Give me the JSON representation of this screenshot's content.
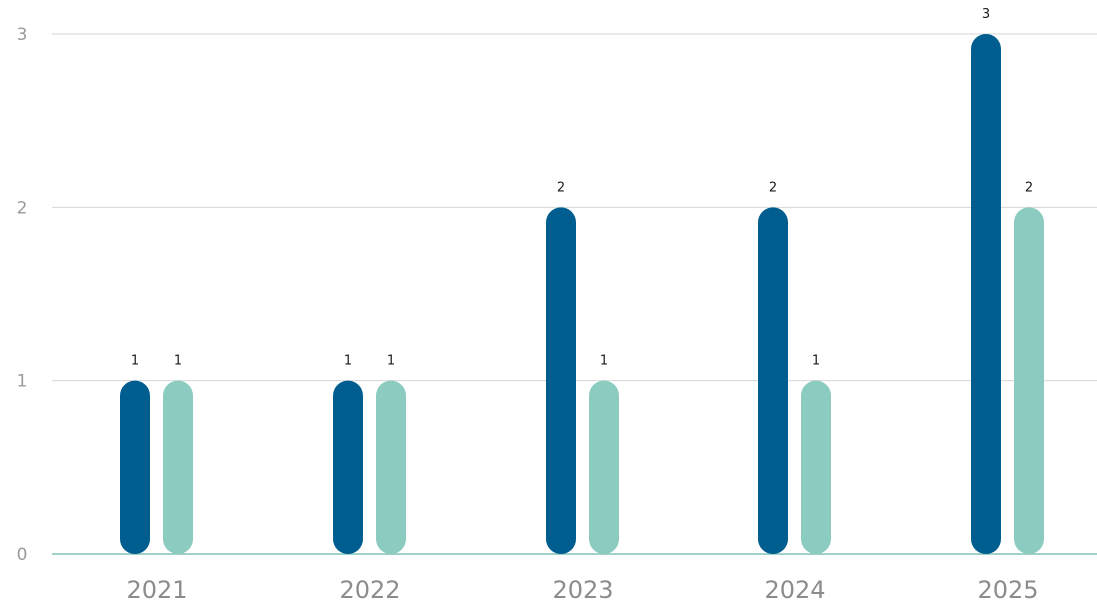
{
  "chart_data": {
    "type": "bar",
    "categories": [
      "2021",
      "2022",
      "2023",
      "2024",
      "2025"
    ],
    "series": [
      {
        "values": [
          1,
          1,
          2,
          2,
          3
        ],
        "color": "#005d8f"
      },
      {
        "values": [
          1,
          1,
          1,
          1,
          2
        ],
        "color": "#8bcbc0"
      }
    ],
    "ylim": [
      0,
      3
    ],
    "yticks": [
      0,
      1,
      2,
      3
    ],
    "grid": true,
    "data_labels": true,
    "legend": "none",
    "title": "",
    "xlabel": "",
    "ylabel": ""
  }
}
